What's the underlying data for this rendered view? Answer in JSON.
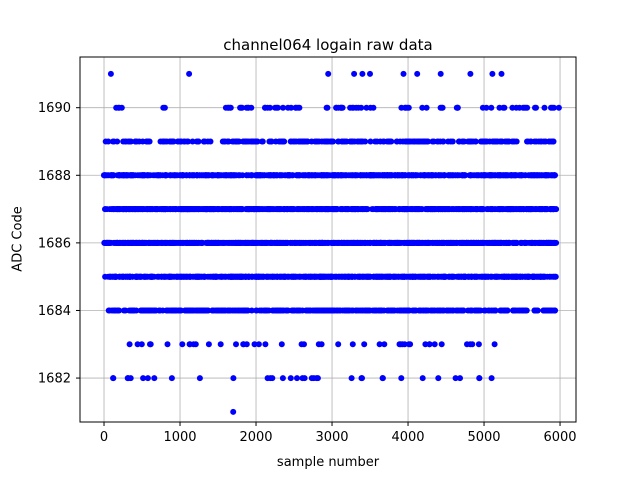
{
  "figure": {
    "background": "#ffffff"
  },
  "chart_data": {
    "type": "scatter",
    "title": "channel064 logain raw data",
    "xlabel": "sample number",
    "ylabel": "ADC Code",
    "xlim": [
      -316,
      6210
    ],
    "ylim": [
      1680.7,
      1691.5
    ],
    "xticks": [
      0,
      1000,
      2000,
      3000,
      4000,
      5000,
      6000
    ],
    "yticks": [
      1682,
      1684,
      1686,
      1688,
      1690
    ],
    "grid": true,
    "grid_color": "#b0b0b0",
    "axes_color": "#000000",
    "marker_color": "#0000ff",
    "marker_radius": 3,
    "x_data_range": [
      0,
      5950
    ],
    "seed": 42,
    "levels": [
      {
        "y": 1691,
        "xs": [
          90,
          1120,
          2950,
          3290,
          3400,
          3500,
          3940,
          4120,
          4430,
          4820,
          5110,
          5230
        ]
      },
      {
        "y": 1690,
        "segments": [
          [
            80,
            260,
            4
          ],
          [
            770,
            830,
            2
          ],
          [
            1600,
            2700,
            26
          ],
          [
            2900,
            3650,
            18
          ],
          [
            3900,
            4700,
            13
          ],
          [
            4900,
            5990,
            20
          ]
        ]
      },
      {
        "y": 1689,
        "n": 260
      },
      {
        "y": 1688,
        "n": 650
      },
      {
        "y": 1687,
        "n": 850
      },
      {
        "y": 1686,
        "n": 950
      },
      {
        "y": 1685,
        "n": 750
      },
      {
        "y": 1684,
        "n": 430
      },
      {
        "y": 1683,
        "n": 46,
        "range": [
          30,
          5250
        ]
      },
      {
        "y": 1682,
        "n": 36,
        "range": [
          60,
          5200
        ]
      },
      {
        "y": 1681,
        "xs": [
          1700
        ]
      }
    ]
  }
}
